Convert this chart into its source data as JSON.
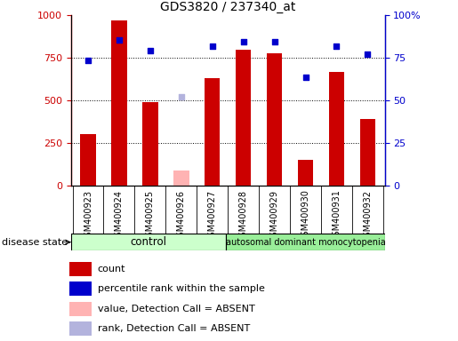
{
  "title": "GDS3820 / 237340_at",
  "samples": [
    "GSM400923",
    "GSM400924",
    "GSM400925",
    "GSM400926",
    "GSM400927",
    "GSM400928",
    "GSM400929",
    "GSM400930",
    "GSM400931",
    "GSM400932"
  ],
  "counts": [
    305,
    970,
    490,
    null,
    630,
    800,
    775,
    155,
    670,
    390
  ],
  "absent_count": [
    null,
    null,
    null,
    90,
    null,
    null,
    null,
    null,
    null,
    null
  ],
  "percentile_ranks": [
    73.5,
    85.5,
    79.5,
    null,
    82.0,
    84.5,
    84.5,
    63.5,
    82.0,
    77.0
  ],
  "absent_rank": [
    null,
    null,
    null,
    52.0,
    null,
    null,
    null,
    null,
    null,
    null
  ],
  "control_n": 5,
  "disease_n": 5,
  "control_label": "control",
  "disease_label": "autosomal dominant monocytopenia",
  "ylim_left": [
    0,
    1000
  ],
  "ylim_right": [
    0,
    100
  ],
  "yticks_left": [
    0,
    250,
    500,
    750,
    1000
  ],
  "yticks_right": [
    0,
    25,
    50,
    75,
    100
  ],
  "bar_color": "#cc0000",
  "absent_bar_color": "#ffb3b3",
  "rank_color": "#0000cc",
  "absent_rank_color": "#b3b3dd",
  "bar_width": 0.5,
  "control_bg": "#ccffcc",
  "disease_bg": "#99ee99",
  "xtick_bg": "#d4d4d4",
  "grid_color": "black",
  "legend_items": [
    {
      "color": "#cc0000",
      "label": "count"
    },
    {
      "color": "#0000cc",
      "label": "percentile rank within the sample"
    },
    {
      "color": "#ffb3b3",
      "label": "value, Detection Call = ABSENT"
    },
    {
      "color": "#b3b3dd",
      "label": "rank, Detection Call = ABSENT"
    }
  ],
  "disease_state_label": "disease state"
}
